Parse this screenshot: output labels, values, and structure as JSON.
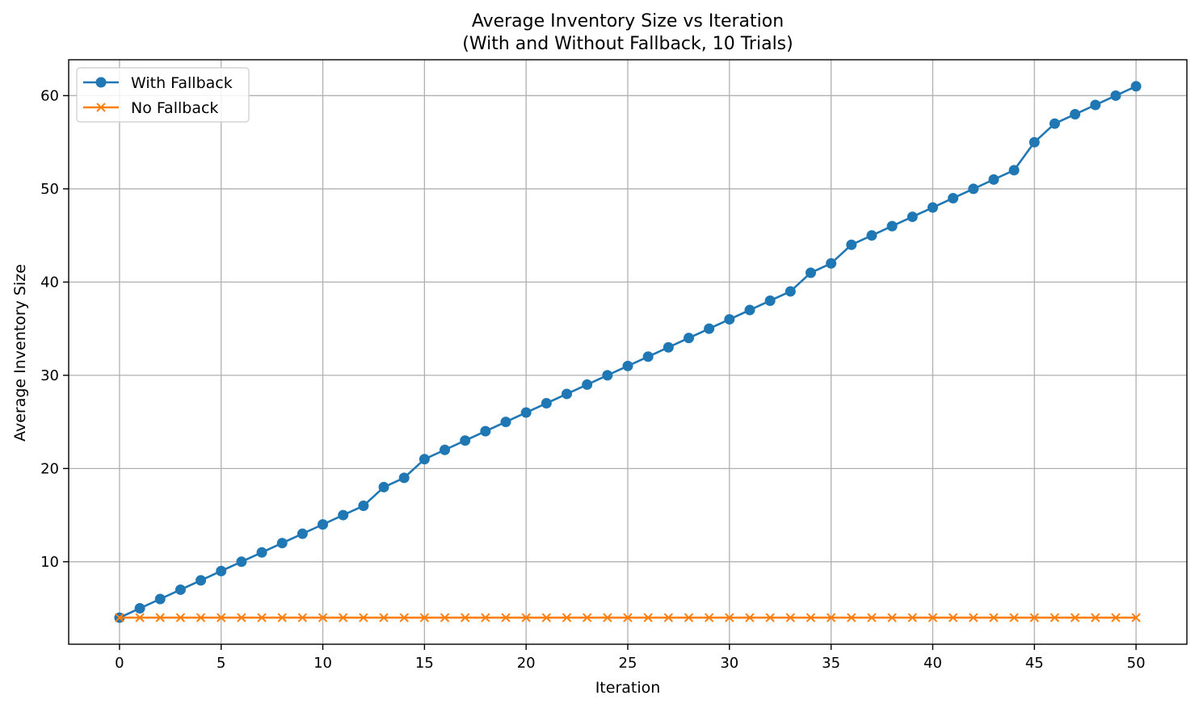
{
  "chart_data": {
    "type": "line",
    "title": "Average Inventory Size vs Iteration",
    "subtitle": "(With and Without Fallback, 10 Trials)",
    "xlabel": "Iteration",
    "ylabel": "Average Inventory Size",
    "xlim": [
      -2.5,
      52.5
    ],
    "ylim": [
      1.15,
      63.85
    ],
    "xticks": [
      0,
      5,
      10,
      15,
      20,
      25,
      30,
      35,
      40,
      45,
      50
    ],
    "yticks": [
      10,
      20,
      30,
      40,
      50,
      60
    ],
    "grid": true,
    "legend_position": "upper-left",
    "x": [
      0,
      1,
      2,
      3,
      4,
      5,
      6,
      7,
      8,
      9,
      10,
      11,
      12,
      13,
      14,
      15,
      16,
      17,
      18,
      19,
      20,
      21,
      22,
      23,
      24,
      25,
      26,
      27,
      28,
      29,
      30,
      31,
      32,
      33,
      34,
      35,
      36,
      37,
      38,
      39,
      40,
      41,
      42,
      43,
      44,
      45,
      46,
      47,
      48,
      49,
      50
    ],
    "series": [
      {
        "name": "With Fallback",
        "color": "#1f77b4",
        "marker": "circle",
        "values": [
          4,
          5,
          6,
          7,
          8,
          9,
          10,
          11,
          12,
          13,
          14,
          15,
          16,
          18,
          19,
          21,
          22,
          23,
          24,
          25,
          26,
          27,
          28,
          29,
          30,
          31,
          32,
          33,
          34,
          35,
          36,
          37,
          38,
          39,
          41,
          42,
          44,
          45,
          46,
          47,
          48,
          49,
          50,
          51,
          52,
          55,
          57,
          58,
          59,
          60,
          61
        ]
      },
      {
        "name": "No Fallback",
        "color": "#ff7f0e",
        "marker": "x",
        "values": [
          4,
          4,
          4,
          4,
          4,
          4,
          4,
          4,
          4,
          4,
          4,
          4,
          4,
          4,
          4,
          4,
          4,
          4,
          4,
          4,
          4,
          4,
          4,
          4,
          4,
          4,
          4,
          4,
          4,
          4,
          4,
          4,
          4,
          4,
          4,
          4,
          4,
          4,
          4,
          4,
          4,
          4,
          4,
          4,
          4,
          4,
          4,
          4,
          4,
          4,
          4
        ]
      }
    ]
  }
}
